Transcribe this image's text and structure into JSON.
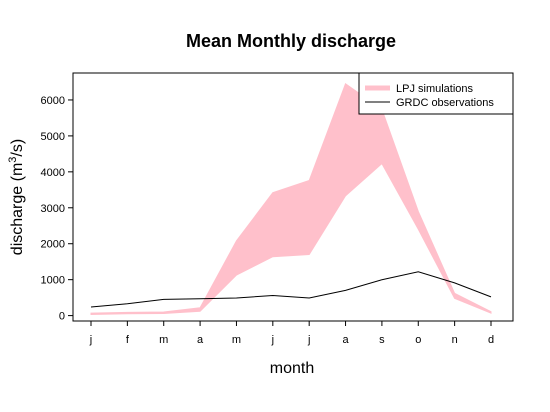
{
  "chart_data": {
    "type": "area",
    "title": "Mean Monthly discharge",
    "xlabel": "month",
    "ylabel_main": "discharge (m",
    "ylabel_sup": "3",
    "ylabel_end": "/s)",
    "categories": [
      "j",
      "f",
      "m",
      "a",
      "m",
      "j",
      "j",
      "a",
      "s",
      "o",
      "n",
      "d"
    ],
    "ylim": [
      -150,
      6750
    ],
    "yticks": [
      0,
      1000,
      2000,
      3000,
      4000,
      5000,
      6000
    ],
    "ytick_labels": [
      "0",
      "1000",
      "2000",
      "3000",
      "4000",
      "5000",
      "6000"
    ],
    "grid": false,
    "legend_position": "top-right",
    "series": [
      {
        "name": "LPJ simulations",
        "kind": "band",
        "color": "#ffc0cb",
        "lower": [
          30,
          50,
          60,
          120,
          1130,
          1640,
          1700,
          3330,
          4230,
          2400,
          480,
          70
        ],
        "upper": [
          70,
          90,
          100,
          220,
          2080,
          3420,
          3760,
          6450,
          5740,
          2900,
          620,
          110
        ]
      },
      {
        "name": "GRDC observations",
        "kind": "line",
        "color": "#000000",
        "values": [
          240,
          330,
          450,
          470,
          490,
          560,
          490,
          700,
          1000,
          1220,
          910,
          520
        ]
      }
    ]
  }
}
